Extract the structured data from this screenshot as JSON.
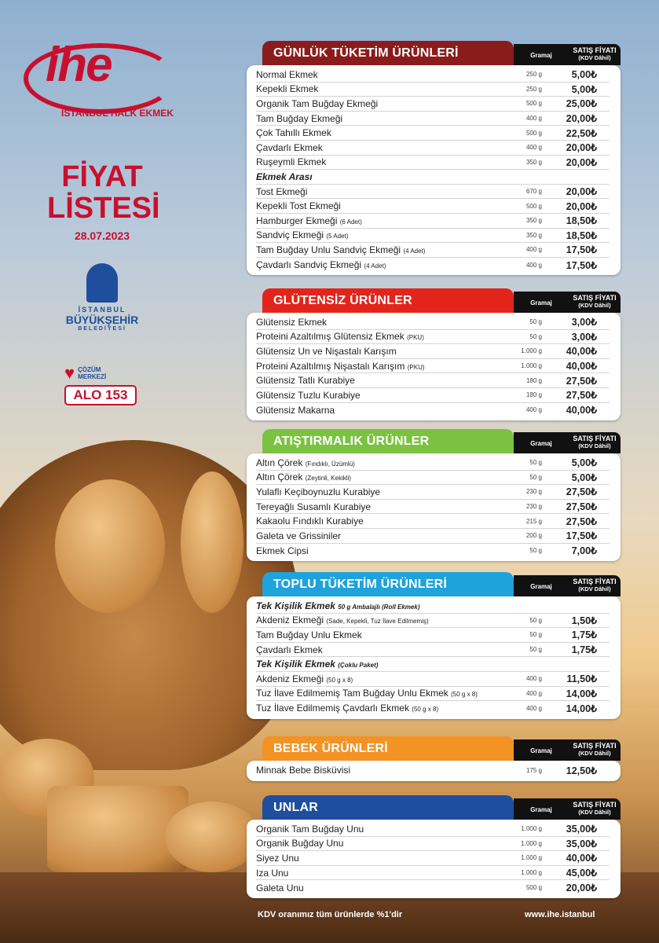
{
  "brand": {
    "logo_text": "ihe",
    "logo_subtitle": "İSTANBUL HALK EKMEK"
  },
  "title_line1": "FİYAT",
  "title_line2": "LİSTESİ",
  "date": "28.07.2023",
  "ibb": {
    "line1": "İSTANBUL",
    "line2": "BÜYÜKŞEHİR",
    "line3": "BELEDİYESİ"
  },
  "alo": {
    "label1": "ÇÖZÜM",
    "label2": "MERKEZİ",
    "number": "ALO 153"
  },
  "column_headers": {
    "gramaj": "Gramaj",
    "price": "SATIŞ FİYATI",
    "price_note": "(KDV Dâhil)"
  },
  "colors": {
    "gunluk": "#8b1c1c",
    "glutensiz": "#e3241b",
    "atistirmalik": "#7cc242",
    "toplu": "#1ea3dc",
    "bebek": "#f39324",
    "unlar": "#1e4f9e"
  },
  "sections": [
    {
      "key": "gunluk",
      "title": "GÜNLÜK TÜKETİM ÜRÜNLERİ",
      "rows": [
        {
          "name": "Normal Ekmek",
          "gram": "250 g",
          "price": "5,00₺"
        },
        {
          "name": "Kepekli Ekmek",
          "gram": "250 g",
          "price": "5,00₺"
        },
        {
          "name": "Organik Tam Buğday Ekmeği",
          "gram": "500 g",
          "price": "25,00₺"
        },
        {
          "name": "Tam Buğday Ekmeği",
          "gram": "400 g",
          "price": "20,00₺"
        },
        {
          "name": "Çok Tahıllı Ekmek",
          "gram": "500 g",
          "price": "22,50₺"
        },
        {
          "name": "Çavdarlı  Ekmek",
          "gram": "400 g",
          "price": "20,00₺"
        },
        {
          "name": "Ruşeymli  Ekmek",
          "gram": "350 g",
          "price": "20,00₺"
        },
        {
          "sub": "Ekmek Arası"
        },
        {
          "name": "Tost Ekmeği",
          "gram": "670 g",
          "price": "20,00₺"
        },
        {
          "name": "Kepekli Tost Ekmeği",
          "gram": "500 g",
          "price": "20,00₺"
        },
        {
          "name": "Hamburger Ekmeği",
          "note": "(6 Adet)",
          "gram": "350 g",
          "price": "18,50₺"
        },
        {
          "name": "Sandviç Ekmeği",
          "note": "(5 Adet)",
          "gram": "350 g",
          "price": "18,50₺"
        },
        {
          "name": "Tam Buğday Unlu Sandviç Ekmeği",
          "note": "(4 Adet)",
          "gram": "400 g",
          "price": "17,50₺"
        },
        {
          "name": "Çavdarlı Sandviç Ekmeği",
          "note": "(4 Adet)",
          "gram": "400 g",
          "price": "17,50₺"
        }
      ]
    },
    {
      "key": "glutensiz",
      "title": "GLÜTENSİZ ÜRÜNLER",
      "rows": [
        {
          "name": "Glütensiz Ekmek",
          "gram": "50 g",
          "price": "3,00₺"
        },
        {
          "name": "Proteini Azaltılmış Glütensiz Ekmek",
          "note": "(PKU)",
          "gram": "50 g",
          "price": "3,00₺"
        },
        {
          "name": "Glütensiz Un ve Nişastalı Karışım",
          "gram": "1.000 g",
          "price": "40,00₺"
        },
        {
          "name": "Proteini Azaltılmış Nişastalı Karışım",
          "note": "(PKU)",
          "gram": "1.000 g",
          "price": "40,00₺"
        },
        {
          "name": "Glütensiz Tatlı Kurabiye",
          "gram": "180 g",
          "price": "27,50₺"
        },
        {
          "name": "Glütensiz Tuzlu Kurabiye",
          "gram": "180 g",
          "price": "27,50₺"
        },
        {
          "name": "Glütensiz Makarna",
          "gram": "400 g",
          "price": "40,00₺"
        }
      ]
    },
    {
      "key": "atistirmalik",
      "title": "ATIŞTIRMALIK ÜRÜNLER",
      "rows": [
        {
          "name": "Altın Çörek",
          "note": "(Fındıklı, Üzümlü)",
          "gram": "50 g",
          "price": "5,00₺"
        },
        {
          "name": "Altın Çörek",
          "note": "(Zeytinli, Kekikli)",
          "gram": "50 g",
          "price": "5,00₺"
        },
        {
          "name": "Yulaflı Keçiboynuzlu Kurabiye",
          "gram": "230 g",
          "price": "27,50₺"
        },
        {
          "name": "Tereyağlı Susamlı Kurabiye",
          "gram": "230 g",
          "price": "27,50₺"
        },
        {
          "name": "Kakaolu Fındıklı Kurabiye",
          "gram": "215 g",
          "price": "27,50₺"
        },
        {
          "name": "Galeta ve Grissiniler",
          "gram": "200 g",
          "price": "17,50₺"
        },
        {
          "name": "Ekmek Cipsi",
          "gram": "50 g",
          "price": "7,00₺"
        }
      ]
    },
    {
      "key": "toplu",
      "title": "TOPLU TÜKETİM ÜRÜNLERİ",
      "rows": [
        {
          "sub": "Tek Kişilik Ekmek",
          "note": "50 g Ambalajlı (Roll Ekmek)"
        },
        {
          "name": "Akdeniz Ekmeği",
          "note": "(Sade, Kepekli, Tuz İlave Edilmemiş)",
          "gram": "50 g",
          "price": "1,50₺"
        },
        {
          "name": "Tam Buğday Unlu Ekmek",
          "gram": "50 g",
          "price": "1,75₺"
        },
        {
          "name": "Çavdarlı Ekmek",
          "gram": "50 g",
          "price": "1,75₺"
        },
        {
          "sub": "Tek Kişilik Ekmek",
          "note": "(Çoklu Paket)"
        },
        {
          "name": "Akdeniz Ekmeği",
          "note": "(50 g x 8)",
          "gram": "400 g",
          "price": "11,50₺"
        },
        {
          "name": "Tuz İlave Edilmemiş Tam Buğday Unlu Ekmek",
          "note": "(50 g x 8)",
          "gram": "400 g",
          "price": "14,00₺"
        },
        {
          "name": "Tuz İlave Edilmemiş Çavdarlı Ekmek",
          "note": "(50 g x 8)",
          "gram": "400 g",
          "price": "14,00₺"
        }
      ]
    },
    {
      "key": "bebek",
      "title": "BEBEK ÜRÜNLERİ",
      "rows": [
        {
          "name": "Minnak Bebe Bisküvisi",
          "gram": "175 g",
          "price": "12,50₺"
        }
      ]
    },
    {
      "key": "unlar",
      "title": "UNLAR",
      "rows": [
        {
          "name": "Organik Tam Buğday Unu",
          "gram": "1.000 g",
          "price": "35,00₺"
        },
        {
          "name": "Organik Buğday Unu",
          "gram": "1.000 g",
          "price": "35,00₺"
        },
        {
          "name": "Siyez Unu",
          "gram": "1.000 g",
          "price": "40,00₺"
        },
        {
          "name": "Iza Unu",
          "gram": "1.000 g",
          "price": "45,00₺"
        },
        {
          "name": "Galeta Unu",
          "gram": "500 g",
          "price": "20,00₺"
        }
      ]
    }
  ],
  "footer": {
    "vat_note": "KDV oranımız tüm ürünlerde %1'dir",
    "website": "www.ihe.istanbul"
  }
}
